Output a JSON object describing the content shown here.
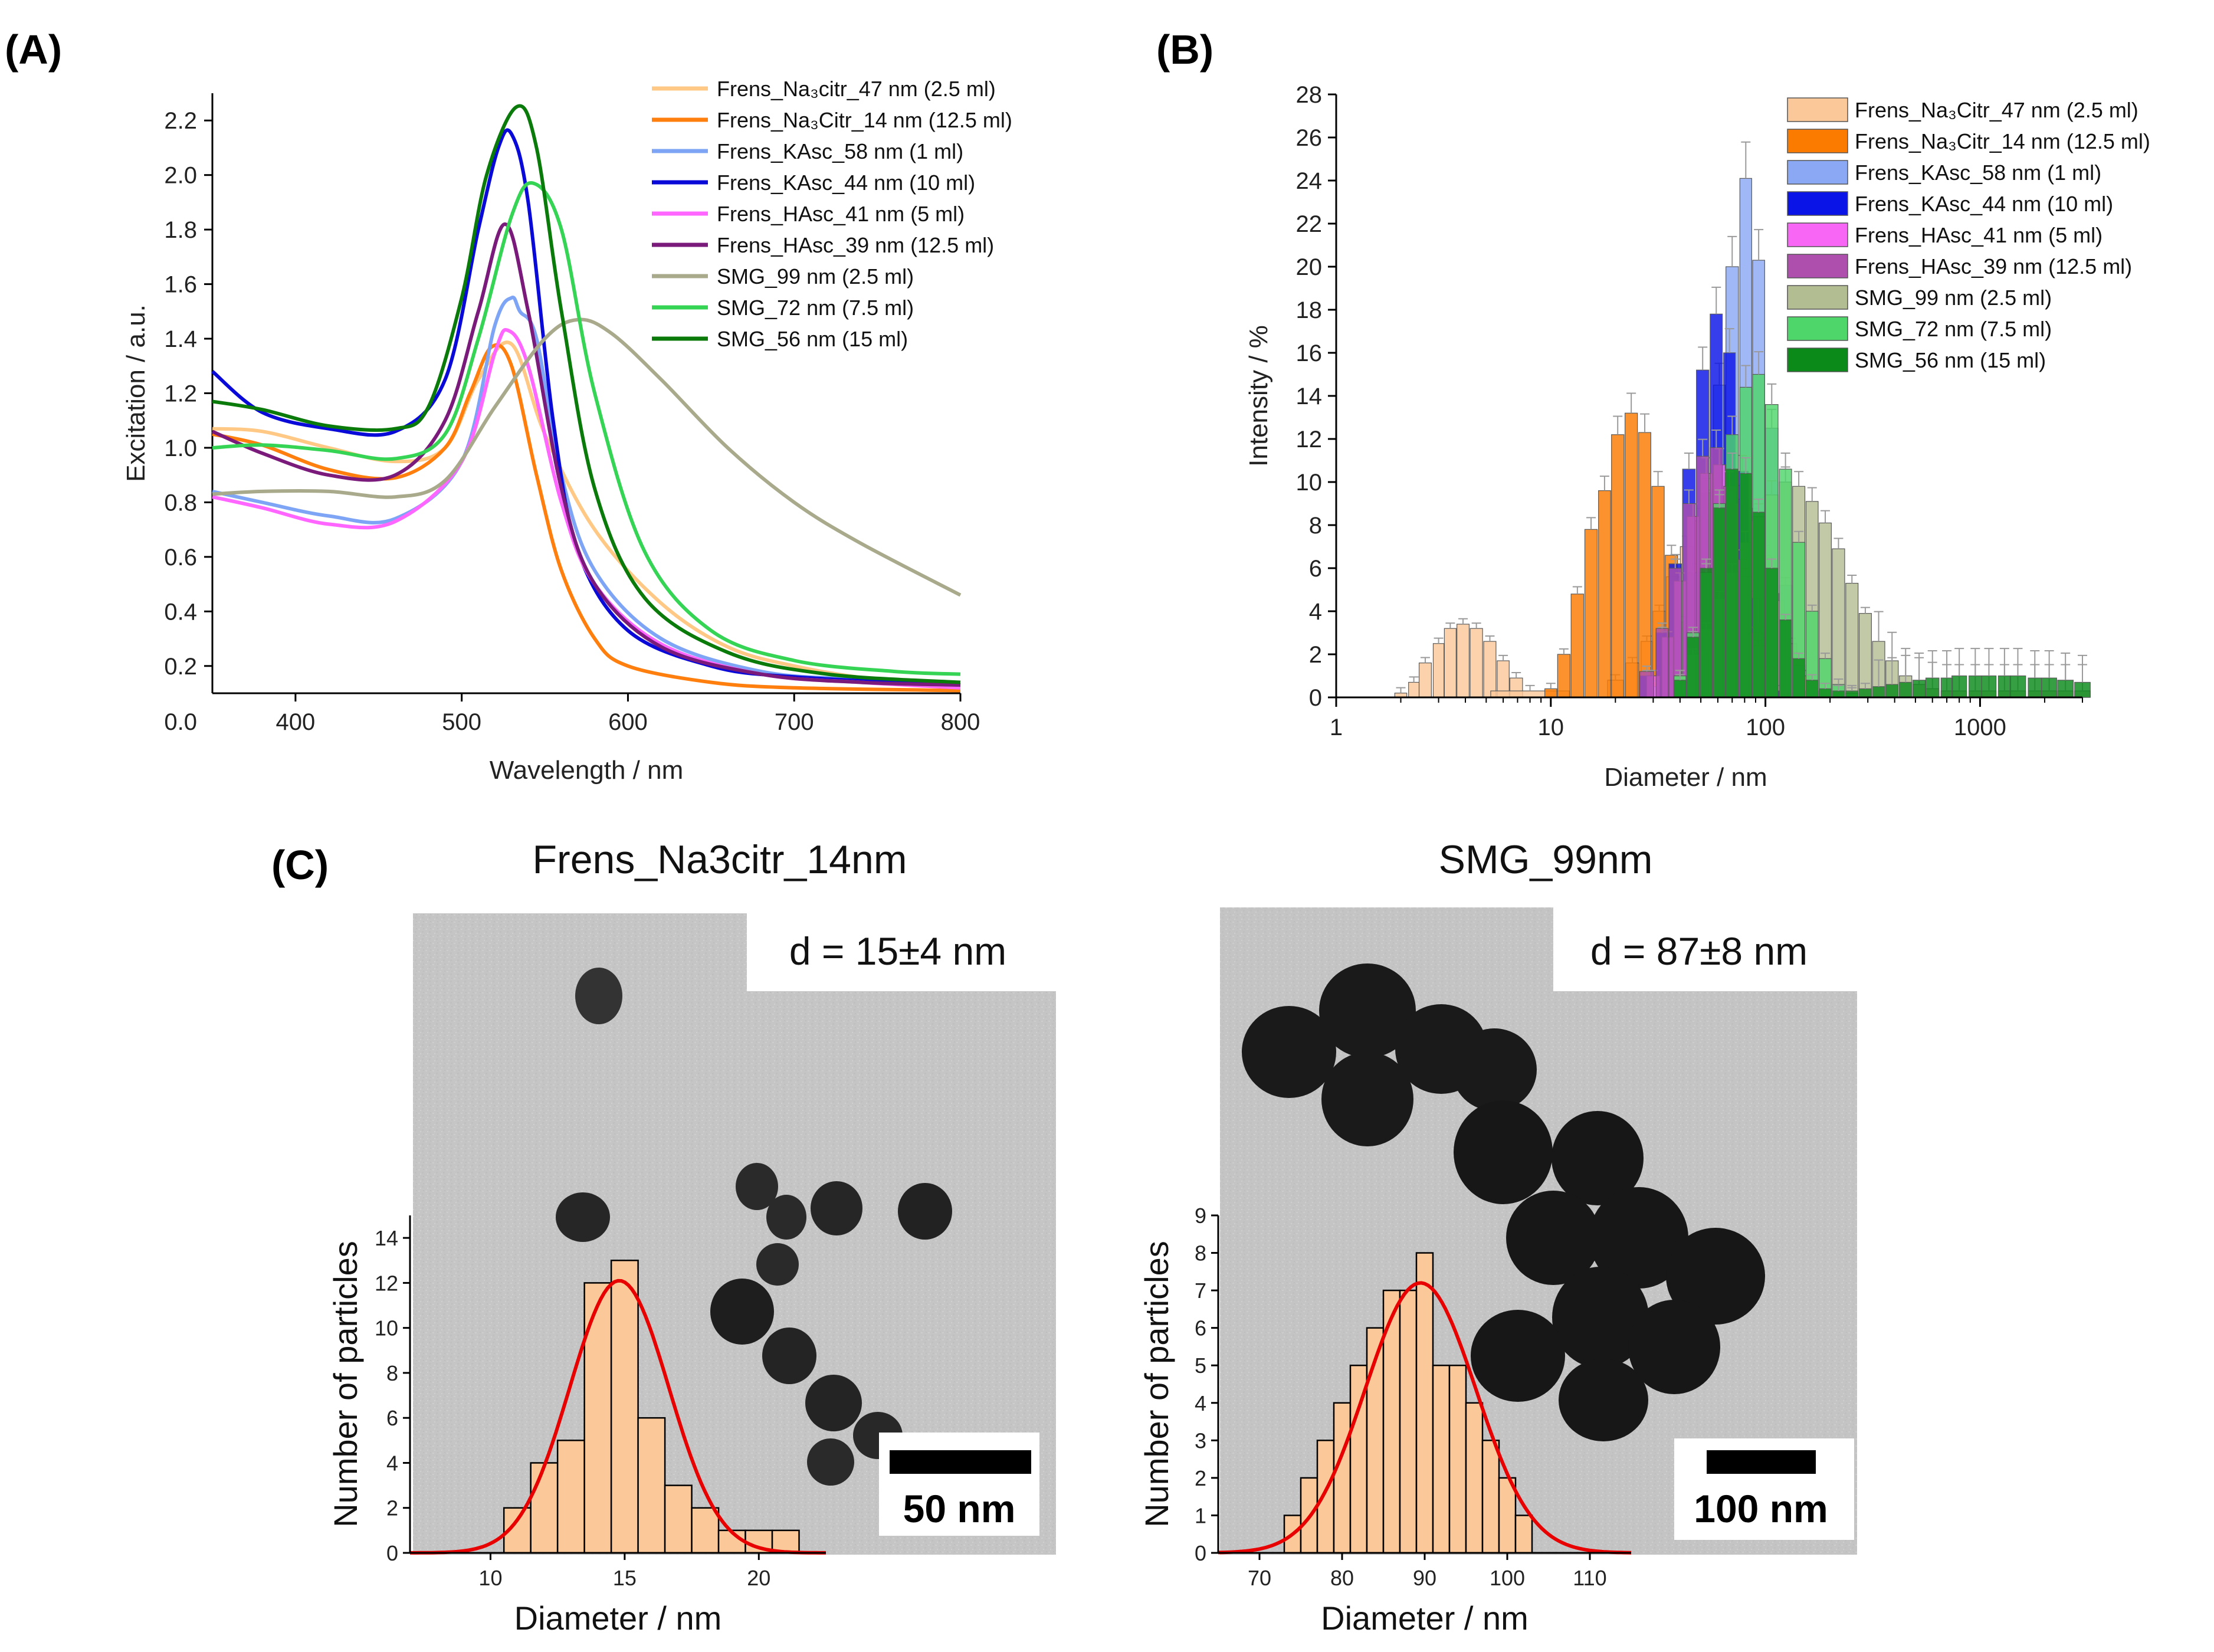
{
  "panel_labels": {
    "a": "(A)",
    "b": "(B)",
    "c": "(C)"
  },
  "chart_data": [
    {
      "id": "A",
      "type": "line",
      "xlabel": "Wavelength / nm",
      "ylabel": "Excitation / a.u.",
      "xlim": [
        350,
        800
      ],
      "ylim": [
        0.1,
        2.3
      ],
      "xticks": [
        400,
        500,
        600,
        700,
        800
      ],
      "yticks": [
        0.2,
        0.4,
        0.6,
        0.8,
        1.0,
        1.2,
        1.4,
        1.6,
        1.8,
        2.0,
        2.2
      ],
      "y_origin_label": "0.0",
      "legend_position": "top-right",
      "series": [
        {
          "name": "Frens_Na₃citr_47 nm (2.5 ml)",
          "color": "#ffc985",
          "x": [
            350,
            380,
            420,
            460,
            490,
            510,
            530,
            550,
            580,
            620,
            660,
            700,
            750,
            800
          ],
          "y": [
            1.07,
            1.06,
            1.0,
            0.95,
            1.0,
            1.25,
            1.38,
            1.05,
            0.7,
            0.43,
            0.27,
            0.2,
            0.15,
            0.13
          ]
        },
        {
          "name": "Frens_Na₃Citr_14 nm (12.5 ml)",
          "color": "#ff7f0e",
          "x": [
            350,
            380,
            420,
            460,
            490,
            505,
            518,
            530,
            545,
            560,
            580,
            600,
            650,
            700,
            800
          ],
          "y": [
            1.05,
            1.01,
            0.92,
            0.89,
            1.0,
            1.2,
            1.37,
            1.3,
            0.9,
            0.55,
            0.3,
            0.2,
            0.14,
            0.12,
            0.11
          ]
        },
        {
          "name": "Frens_KAsc_58 nm (1 ml)",
          "color": "#7ea5f5",
          "x": [
            350,
            380,
            420,
            460,
            500,
            520,
            530,
            535,
            545,
            560,
            580,
            620,
            680,
            740,
            800
          ],
          "y": [
            0.84,
            0.8,
            0.75,
            0.74,
            0.95,
            1.45,
            1.55,
            1.5,
            1.4,
            0.9,
            0.55,
            0.3,
            0.18,
            0.15,
            0.13
          ]
        },
        {
          "name": "Frens_KAsc_44 nm (10 ml)",
          "color": "#0a0ad8",
          "x": [
            350,
            380,
            420,
            460,
            490,
            510,
            522,
            530,
            540,
            555,
            570,
            600,
            650,
            700,
            800
          ],
          "y": [
            1.28,
            1.13,
            1.07,
            1.06,
            1.25,
            1.8,
            2.1,
            2.15,
            1.9,
            1.1,
            0.62,
            0.33,
            0.2,
            0.16,
            0.13
          ]
        },
        {
          "name": "Frens_HAsc_41 nm (5 ml)",
          "color": "#ff66ff",
          "x": [
            350,
            380,
            420,
            460,
            500,
            520,
            528,
            540,
            560,
            580,
            620,
            680,
            740,
            800
          ],
          "y": [
            0.82,
            0.78,
            0.72,
            0.73,
            0.95,
            1.35,
            1.43,
            1.3,
            0.8,
            0.5,
            0.28,
            0.17,
            0.14,
            0.12
          ]
        },
        {
          "name": "Frens_HAsc_39 nm (12.5 ml)",
          "color": "#7a1a7a",
          "x": [
            350,
            380,
            420,
            460,
            490,
            510,
            526,
            540,
            560,
            580,
            620,
            680,
            740,
            800
          ],
          "y": [
            1.06,
            0.98,
            0.9,
            0.9,
            1.1,
            1.5,
            1.82,
            1.5,
            0.85,
            0.5,
            0.27,
            0.17,
            0.14,
            0.13
          ]
        },
        {
          "name": "SMG_99 nm (2.5 ml)",
          "color": "#a9a98c",
          "x": [
            350,
            380,
            420,
            460,
            490,
            520,
            550,
            570,
            590,
            620,
            660,
            700,
            740,
            800
          ],
          "y": [
            0.83,
            0.84,
            0.84,
            0.82,
            0.88,
            1.15,
            1.4,
            1.47,
            1.42,
            1.25,
            1.0,
            0.8,
            0.65,
            0.46
          ]
        },
        {
          "name": "SMG_72 nm (7.5 ml)",
          "color": "#35d455",
          "x": [
            350,
            380,
            420,
            460,
            490,
            510,
            530,
            543,
            560,
            580,
            610,
            650,
            700,
            760,
            800
          ],
          "y": [
            1.0,
            1.01,
            0.99,
            0.96,
            1.05,
            1.4,
            1.85,
            1.97,
            1.8,
            1.2,
            0.62,
            0.33,
            0.22,
            0.18,
            0.17
          ]
        },
        {
          "name": "SMG_56 nm (15 ml)",
          "color": "#0a7a0a",
          "x": [
            350,
            380,
            420,
            460,
            480,
            500,
            515,
            533,
            545,
            560,
            580,
            610,
            660,
            720,
            800
          ],
          "y": [
            1.17,
            1.14,
            1.08,
            1.07,
            1.15,
            1.55,
            2.0,
            2.25,
            2.1,
            1.5,
            0.85,
            0.45,
            0.25,
            0.17,
            0.14
          ]
        }
      ]
    },
    {
      "id": "B",
      "type": "bar",
      "xscale": "log",
      "xlabel": "Diameter / nm",
      "ylabel": "Intensity / %",
      "xlim": [
        1,
        3000
      ],
      "ylim": [
        0,
        28
      ],
      "xticks": [
        1,
        10,
        100,
        1000
      ],
      "xtick_labels": [
        "1",
        "10",
        "100",
        "1000"
      ],
      "yticks": [
        0,
        2,
        4,
        6,
        8,
        10,
        12,
        14,
        16,
        18,
        20,
        22,
        24,
        26,
        28
      ],
      "legend_position": "top-right",
      "series": [
        {
          "name": "Frens_Na₃Citr_47 nm (2.5 ml)",
          "color": "#fbc89a",
          "x": [
            2,
            2.3,
            2.6,
            3,
            3.4,
            3.9,
            4.5,
            5.2,
            6,
            6.9,
            8,
            20,
            24,
            28,
            32,
            37,
            43,
            50,
            57,
            66,
            76,
            87,
            100,
            115,
            132,
            150
          ],
          "y": [
            0.2,
            0.7,
            1.6,
            2.5,
            3.2,
            3.4,
            3.2,
            2.6,
            1.7,
            0.9,
            0.3,
            0.8,
            1.6,
            2.6,
            4.0,
            5.6,
            7.0,
            8.2,
            9.0,
            9.4,
            9.2,
            8.2,
            6.6,
            4.5,
            2.5,
            1.0
          ]
        },
        {
          "name": "Frens_Na₃Citr_14 nm (12.5 ml)",
          "color": "#fb7a00",
          "x": [
            10,
            11.5,
            13.3,
            15.4,
            17.8,
            20.5,
            23.7,
            27.4,
            31.6,
            36.5,
            42.2,
            48.7,
            56.2,
            65
          ],
          "y": [
            0.4,
            2.0,
            4.8,
            7.8,
            9.6,
            12.2,
            13.2,
            12.3,
            9.8,
            6.6,
            3.5,
            1.3,
            0.3,
            0.1
          ]
        },
        {
          "name": "Frens_KAsc_58 nm (1 ml)",
          "color": "#8ba8f4",
          "x": [
            30,
            35,
            40,
            46,
            53,
            61,
            70,
            81,
            93,
            107,
            124,
            143,
            165
          ],
          "y": [
            0.5,
            1.5,
            3.2,
            5.8,
            9.5,
            14.5,
            20.0,
            24.1,
            20.3,
            12.5,
            5.2,
            1.5,
            0.3
          ]
        },
        {
          "name": "Frens_KAsc_44 nm (10 ml)",
          "color": "#0a14e6",
          "x": [
            28,
            33,
            38,
            44,
            51,
            59,
            68,
            78,
            90,
            104,
            120
          ],
          "y": [
            1.0,
            3.0,
            6.2,
            10.6,
            15.2,
            17.8,
            16.0,
            10.5,
            4.6,
            1.4,
            0.3
          ]
        },
        {
          "name": "Frens_HAsc_41 nm (5 ml)",
          "color": "#f766f5",
          "x": [
            30,
            35,
            40,
            46,
            53,
            61,
            70,
            81,
            93
          ],
          "y": [
            1.0,
            2.8,
            5.4,
            8.4,
            10.4,
            10.8,
            9.0,
            5.6,
            2.4
          ]
        },
        {
          "name": "Frens_HAsc_39 nm (12.5 ml)",
          "color": "#ae4fae",
          "x": [
            28,
            33,
            38,
            44,
            51,
            59,
            68,
            78,
            90,
            104
          ],
          "y": [
            1.2,
            3.2,
            6.0,
            9.0,
            11.2,
            11.6,
            9.8,
            6.4,
            3.0,
            1.0
          ]
        },
        {
          "name": "SMG_99 nm (2.5 ml)",
          "color": "#b3bd92",
          "x": [
            40,
            46,
            53,
            61,
            70,
            81,
            93,
            107,
            124,
            143,
            165,
            190,
            219,
            253,
            292,
            337,
            389,
            450,
            520,
            600,
            700,
            800,
            950,
            1100,
            1300,
            1500,
            1800,
            2100,
            2500,
            3000
          ],
          "y": [
            1.0,
            2.0,
            3.2,
            4.6,
            5.8,
            7.2,
            8.4,
            9.4,
            10.0,
            9.8,
            9.1,
            8.1,
            6.9,
            5.3,
            3.9,
            2.6,
            1.7,
            1.0,
            0.6,
            0.4,
            0.3,
            0.3,
            0.3,
            0.3,
            0.3,
            0.3,
            0.3,
            0.3,
            0.3,
            0.3
          ]
        },
        {
          "name": "SMG_72 nm (7.5 ml)",
          "color": "#4fd66a",
          "x": [
            40,
            46,
            53,
            61,
            70,
            81,
            93,
            107,
            124,
            143,
            165,
            190,
            219,
            253
          ],
          "y": [
            1.0,
            3.0,
            5.8,
            9.0,
            12.2,
            14.4,
            15.0,
            13.6,
            10.6,
            7.2,
            4.0,
            1.8,
            0.6,
            0.2
          ]
        },
        {
          "name": "SMG_56 nm (15 ml)",
          "color": "#0b8a1a",
          "x": [
            40,
            46,
            53,
            61,
            70,
            81,
            93,
            107,
            124,
            143,
            165,
            190,
            219,
            253,
            292,
            337,
            389,
            450,
            520,
            600,
            700,
            800,
            950,
            1100,
            1300,
            1500,
            1800,
            2100,
            2500,
            3000
          ],
          "y": [
            0.8,
            2.8,
            6.0,
            8.8,
            10.6,
            10.4,
            8.6,
            6.0,
            3.6,
            1.8,
            0.8,
            0.4,
            0.3,
            0.3,
            0.4,
            0.5,
            0.6,
            0.7,
            0.8,
            0.9,
            0.9,
            1.0,
            1.0,
            1.0,
            1.0,
            1.0,
            0.9,
            0.9,
            0.8,
            0.7
          ]
        }
      ]
    },
    {
      "id": "C1",
      "type": "bar",
      "title": "Frens_Na3citr_14nm",
      "annotation": "d = 15±4 nm",
      "scale_bar": "50 nm",
      "xlabel": "Diameter / nm",
      "ylabel": "Number of particles",
      "xlim": [
        7,
        22.5
      ],
      "ylim": [
        0,
        15
      ],
      "xticks": [
        10,
        15,
        20
      ],
      "yticks": [
        0,
        2,
        4,
        6,
        8,
        10,
        12,
        14
      ],
      "bar_color": "#fbc89a",
      "fit_color": "#e80000",
      "fit": {
        "mean": 14.8,
        "sigma": 1.85,
        "amplitude": 12.1
      },
      "bins": [
        11,
        12,
        13,
        14,
        15,
        16,
        17,
        18,
        19,
        20,
        21
      ],
      "counts": [
        2,
        4,
        5,
        12,
        13,
        6,
        3,
        2,
        1,
        1,
        1
      ]
    },
    {
      "id": "C2",
      "type": "bar",
      "title": "SMG_99nm",
      "annotation": "d = 87±8 nm",
      "scale_bar": "100 nm",
      "xlabel": "Diameter / nm",
      "ylabel": "Number of particles",
      "xlim": [
        65,
        115
      ],
      "ylim": [
        0,
        9
      ],
      "xticks": [
        70,
        80,
        90,
        100,
        110
      ],
      "yticks": [
        0,
        1,
        2,
        3,
        4,
        5,
        6,
        7,
        8,
        9
      ],
      "bar_color": "#fbc89a",
      "fit_color": "#e80000",
      "fit": {
        "mean": 89.5,
        "sigma": 6.7,
        "amplitude": 7.2
      },
      "bins": [
        74,
        76,
        78,
        80,
        82,
        84,
        86,
        88,
        90,
        92,
        94,
        96,
        98,
        100,
        102
      ],
      "counts": [
        1,
        2,
        3,
        4,
        5,
        6,
        7,
        7,
        8,
        5,
        5,
        4,
        3,
        2,
        1
      ]
    }
  ]
}
